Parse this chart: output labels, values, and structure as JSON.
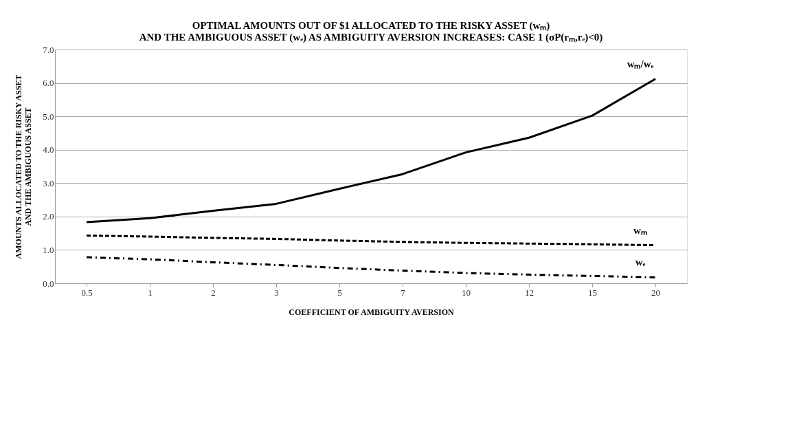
{
  "chart_data": {
    "type": "line",
    "title": [
      "OPTIMAL AMOUNTS OUT OF $1 ALLOCATED TO THE RISKY ASSET (wₘ)",
      "AND THE AMBIGUOUS ASSET (wₑ) AS AMBIGUITY AVERSION INCREASES: CASE 1 (σP(rₘ,rₑ)<0)"
    ],
    "xlabel": "COEFFICIENT OF AMBIGUITY AVERSION",
    "ylabel": [
      "AMOUNTS ALLOCATED TO THE RISKY ASSET",
      "AND THE AMBIGUOUS ASSET"
    ],
    "categories": [
      "0.5",
      "1",
      "2",
      "3",
      "5",
      "7",
      "10",
      "12",
      "15",
      "20"
    ],
    "series": [
      {
        "name": "wₘ/wₑ",
        "color": "#000000",
        "line_style": "solid",
        "values": [
          1.83,
          1.95,
          2.17,
          2.38,
          2.83,
          3.27,
          3.92,
          4.36,
          5.02,
          6.12
        ]
      },
      {
        "name": "wₘ",
        "color": "#000000",
        "line_style": "dashed",
        "values": [
          1.43,
          1.4,
          1.36,
          1.33,
          1.28,
          1.24,
          1.21,
          1.19,
          1.17,
          1.14
        ]
      },
      {
        "name": "wₑ",
        "color": "#000000",
        "line_style": "dashdot",
        "values": [
          0.78,
          0.72,
          0.63,
          0.55,
          0.46,
          0.38,
          0.31,
          0.26,
          0.22,
          0.18
        ]
      }
    ],
    "ylim": [
      0,
      7
    ],
    "yticks": [
      {
        "value": 0,
        "label": "0.0"
      },
      {
        "value": 1,
        "label": "1.0"
      },
      {
        "value": 2,
        "label": "2.0"
      },
      {
        "value": 3,
        "label": "3.0"
      },
      {
        "value": 4,
        "label": "4.0"
      },
      {
        "value": 5,
        "label": "5.0"
      },
      {
        "value": 6,
        "label": "6.0"
      },
      {
        "value": 7,
        "label": "7.0"
      }
    ],
    "grid": "y",
    "legend": false,
    "marker": "none"
  }
}
